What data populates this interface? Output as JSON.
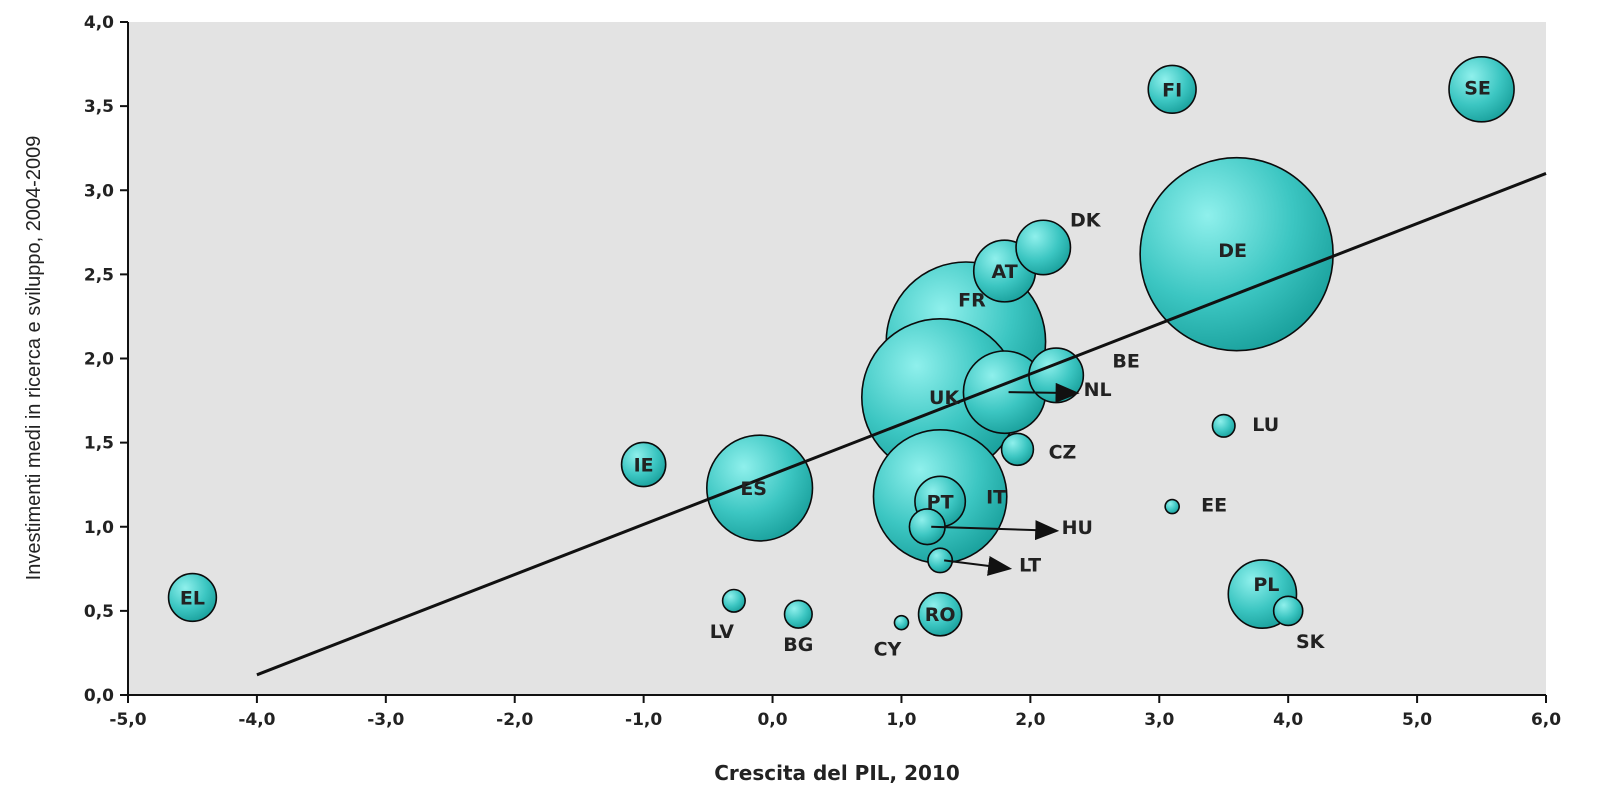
{
  "chart_data": {
    "type": "scatter",
    "title": "",
    "xlabel": "Crescita del PIL, 2010",
    "ylabel": "Investimenti medi in ricerca e sviluppo, 2004-2009",
    "xlim": [
      -5,
      6
    ],
    "ylim": [
      0,
      4
    ],
    "x_ticks": [
      -5,
      -4,
      -3,
      -2,
      -1,
      0,
      1,
      2,
      3,
      4,
      5,
      6
    ],
    "x_tick_labels": [
      "-5,0",
      "-4,0",
      "-3,0",
      "-2,0",
      "-1,0",
      "0,0",
      "1,0",
      "2,0",
      "3,0",
      "4,0",
      "5,0",
      "6,0"
    ],
    "y_ticks": [
      0,
      0.5,
      1,
      1.5,
      2,
      2.5,
      3,
      3.5,
      4
    ],
    "y_tick_labels": [
      "0,0",
      "0,5",
      "1,0",
      "1,5",
      "2,0",
      "2,5",
      "3,0",
      "3,5",
      "4,0"
    ],
    "grid": false,
    "plot_background": "#e3e3e3",
    "bubble_color": "#3cc6c2",
    "points": [
      {
        "label": "EL",
        "x": -4.5,
        "y": 0.58,
        "size": 0.27
      },
      {
        "label": "IE",
        "x": -1.0,
        "y": 1.37,
        "size": 0.23
      },
      {
        "label": "ES",
        "x": -0.1,
        "y": 1.23,
        "size": 1.32
      },
      {
        "label": "LV",
        "x": -0.3,
        "y": 0.56,
        "size": 0.06
      },
      {
        "label": "BG",
        "x": 0.2,
        "y": 0.48,
        "size": 0.09
      },
      {
        "label": "CY",
        "x": 1.0,
        "y": 0.43,
        "size": 0.02
      },
      {
        "label": "RO",
        "x": 1.3,
        "y": 0.48,
        "size": 0.22
      },
      {
        "label": "LT",
        "x": 1.3,
        "y": 0.8,
        "size": 0.07
      },
      {
        "label": "HU",
        "x": 1.2,
        "y": 1.0,
        "size": 0.15
      },
      {
        "label": "PT",
        "x": 1.3,
        "y": 1.15,
        "size": 0.3
      },
      {
        "label": "IT",
        "x": 1.3,
        "y": 1.18,
        "size": 2.1
      },
      {
        "label": "CZ",
        "x": 1.9,
        "y": 1.46,
        "size": 0.12
      },
      {
        "label": "NL",
        "x": 1.8,
        "y": 1.8,
        "size": 0.8
      },
      {
        "label": "BE",
        "x": 2.2,
        "y": 1.9,
        "size": 0.35
      },
      {
        "label": "FR",
        "x": 1.5,
        "y": 2.1,
        "size": 3.0
      },
      {
        "label": "UK",
        "x": 1.3,
        "y": 1.77,
        "size": 2.9
      },
      {
        "label": "AT",
        "x": 1.8,
        "y": 2.52,
        "size": 0.45
      },
      {
        "label": "DK",
        "x": 2.1,
        "y": 2.66,
        "size": 0.35
      },
      {
        "label": "DE",
        "x": 3.6,
        "y": 2.62,
        "size": 4.4
      },
      {
        "label": "FI",
        "x": 3.1,
        "y": 3.6,
        "size": 0.27
      },
      {
        "label": "SE",
        "x": 5.5,
        "y": 3.6,
        "size": 0.5
      },
      {
        "label": "LU",
        "x": 3.5,
        "y": 1.6,
        "size": 0.06
      },
      {
        "label": "EE",
        "x": 3.1,
        "y": 1.12,
        "size": 0.02
      },
      {
        "label": "PL",
        "x": 3.8,
        "y": 0.6,
        "size": 0.55
      },
      {
        "label": "SK",
        "x": 4.0,
        "y": 0.5,
        "size": 0.1
      }
    ],
    "trendline": {
      "x": [
        -4.0,
        6.0
      ],
      "y": [
        0.12,
        3.1
      ]
    },
    "arrows": [
      {
        "from": "NL",
        "to_label": "NL"
      },
      {
        "from": "HU",
        "to_label": "HU"
      },
      {
        "from": "LT",
        "to_label": "LT"
      }
    ]
  }
}
